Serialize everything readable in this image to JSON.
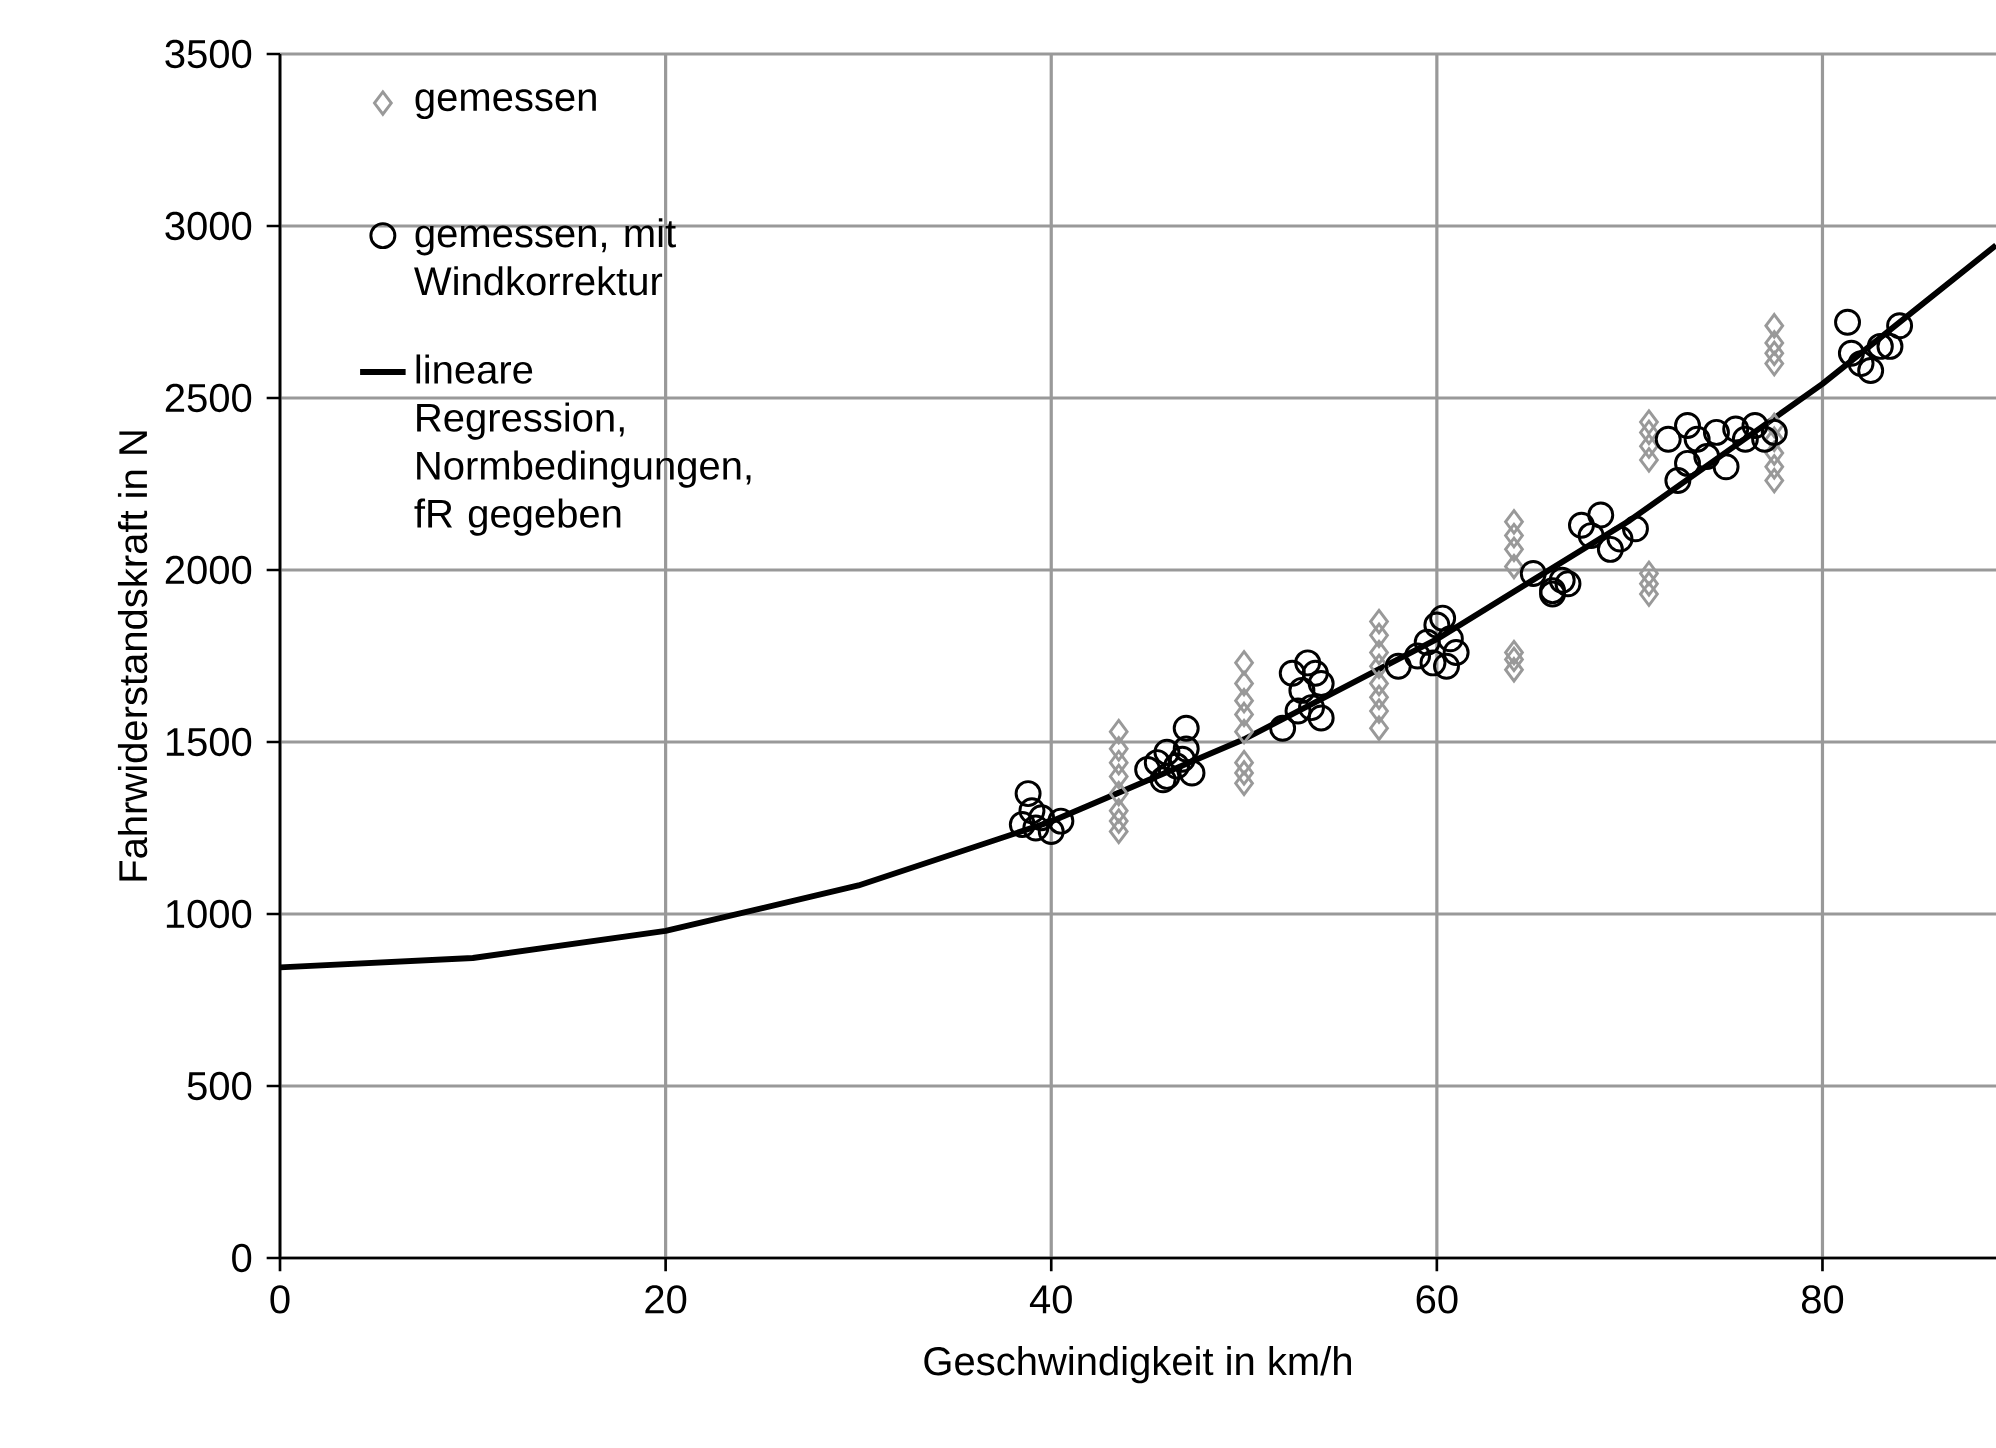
{
  "chart_data": {
    "type": "scatter",
    "xlabel": "Geschwindigkeit in km/h",
    "ylabel": "Fahrwiderstandskraft in N",
    "xlim": [
      0,
      89
    ],
    "ylim": [
      0,
      3500
    ],
    "xticks": [
      0,
      20,
      40,
      60,
      80
    ],
    "yticks": [
      0,
      500,
      1000,
      1500,
      2000,
      2500,
      3000,
      3500
    ],
    "grid": true,
    "legend": "top left",
    "series": [
      {
        "name": "gemessen",
        "marker": "diamond",
        "color": "#999999",
        "x": [
          43.5,
          43.5,
          43.5,
          43.5,
          43.5,
          43.5,
          43.5,
          43.5,
          50,
          50,
          50,
          50,
          50,
          50,
          50,
          50,
          57,
          57,
          57,
          57,
          57,
          57,
          57,
          57,
          64,
          64,
          64,
          64,
          64,
          64,
          64,
          71,
          71,
          71,
          71,
          71,
          71,
          71,
          77.5,
          77.5,
          77.5,
          77.5,
          77.5,
          77.5,
          77.5,
          77.5,
          77.5
        ],
        "values": [
          1530,
          1480,
          1440,
          1400,
          1350,
          1300,
          1270,
          1240,
          1730,
          1670,
          1620,
          1580,
          1530,
          1440,
          1410,
          1380,
          1850,
          1810,
          1760,
          1720,
          1670,
          1630,
          1590,
          1540,
          2140,
          2100,
          2060,
          2010,
          1760,
          1740,
          1710,
          2430,
          2400,
          2360,
          2320,
          1990,
          1960,
          1930,
          2710,
          2660,
          2630,
          2600,
          2420,
          2380,
          2340,
          2300,
          2260
        ]
      },
      {
        "name": "gemessen, mit Windkorrektur",
        "marker": "circle",
        "color": "#000000",
        "x": [
          38.5,
          38.8,
          39,
          39.2,
          40,
          40.5,
          39.5,
          45,
          45.5,
          46,
          46,
          46.5,
          47,
          47,
          47.3,
          45.8,
          46.8,
          52,
          52.5,
          53,
          53.3,
          53.5,
          54,
          54,
          52.8,
          53.7,
          58,
          59,
          59.5,
          60,
          60.5,
          60.7,
          61,
          59.8,
          60.3,
          65,
          66,
          66.5,
          66,
          66.8,
          67.5,
          68,
          68.5,
          69,
          69.5,
          70.3,
          72,
          72.5,
          73,
          73,
          73.5,
          74,
          74.5,
          75,
          75.5,
          76,
          76.5,
          77,
          77.5,
          81.3,
          81.5,
          82,
          82.5,
          83,
          83.5,
          84
        ],
        "values": [
          1260,
          1350,
          1300,
          1250,
          1240,
          1270,
          1280,
          1420,
          1440,
          1400,
          1470,
          1430,
          1540,
          1480,
          1410,
          1390,
          1450,
          1540,
          1700,
          1650,
          1730,
          1600,
          1570,
          1670,
          1590,
          1700,
          1720,
          1750,
          1790,
          1840,
          1720,
          1800,
          1760,
          1730,
          1860,
          1990,
          1940,
          1970,
          1930,
          1960,
          2130,
          2100,
          2160,
          2060,
          2090,
          2120,
          2380,
          2260,
          2420,
          2310,
          2380,
          2330,
          2400,
          2300,
          2410,
          2380,
          2420,
          2380,
          2400,
          2720,
          2630,
          2600,
          2580,
          2650,
          2650,
          2710
        ]
      },
      {
        "name": "lineare Regression, Normbedingungen, fR gegeben",
        "type": "line",
        "marker": "none",
        "line_style": "solid",
        "color": "#000000",
        "x": [
          0,
          10,
          20,
          30,
          40,
          50,
          60,
          70,
          80,
          89
        ],
        "values": [
          845,
          872,
          951,
          1083,
          1269,
          1508,
          1799,
          2144,
          2541,
          2944
        ]
      }
    ]
  }
}
